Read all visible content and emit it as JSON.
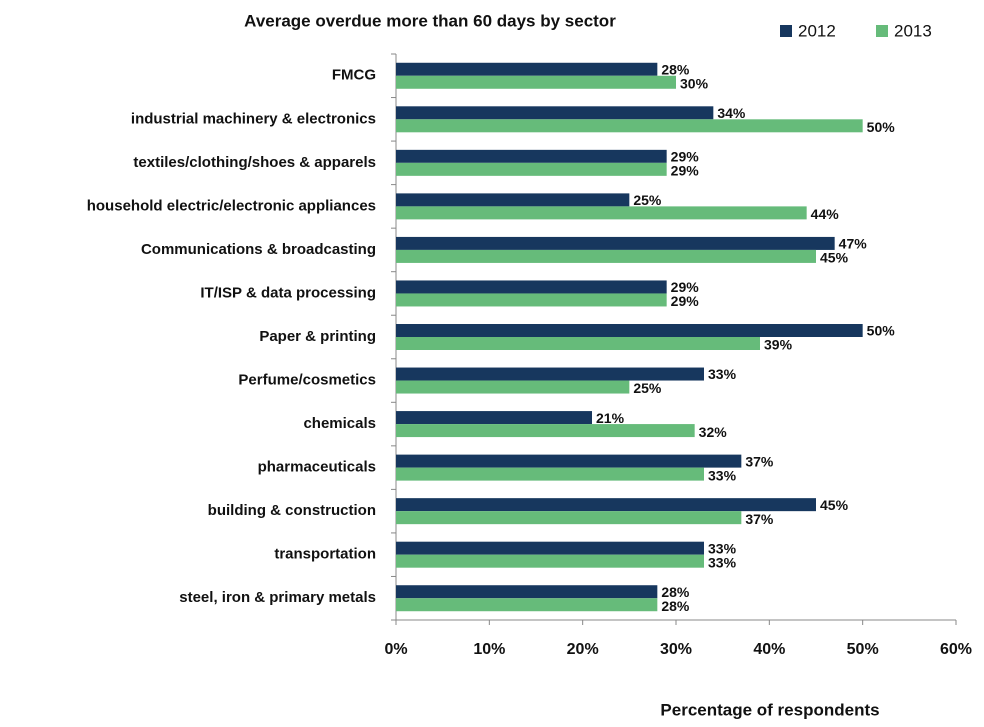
{
  "chart_data": {
    "type": "hbar",
    "title": "Average overdue more than 60 days by sector",
    "x_label": "Percentage of respondents",
    "categories": [
      "FMCG",
      "industrial machinery & electronics",
      "textiles/clothing/shoes & apparels",
      "household electric/electronic appliances",
      "Communications & broadcasting",
      "IT/ISP & data processing",
      "Paper & printing",
      "Perfume/cosmetics",
      "chemicals",
      "pharmaceuticals",
      "building & construction",
      "transportation",
      "steel, iron & primary metals"
    ],
    "series": [
      {
        "name": "2012",
        "color": "#17375e",
        "values": [
          28,
          34,
          29,
          25,
          47,
          29,
          50,
          33,
          21,
          37,
          45,
          33,
          28
        ],
        "value_labels": [
          "28%",
          "34%",
          "29%",
          "25%",
          "47%",
          "29%",
          "50%",
          "33%",
          "21%",
          "37%",
          "45%",
          "33%",
          "28%"
        ]
      },
      {
        "name": "2013",
        "color": "#66bb7a",
        "values": [
          30,
          50,
          29,
          44,
          45,
          29,
          39,
          25,
          32,
          33,
          37,
          33,
          28
        ],
        "value_labels": [
          "30%",
          "50%",
          "29%",
          "44%",
          "45%",
          "29%",
          "39%",
          "25%",
          "32%",
          "33%",
          "37%",
          "33%",
          "28%"
        ]
      }
    ],
    "xlim": [
      0,
      60
    ],
    "xticks": [
      {
        "value": 0,
        "label": "0%"
      },
      {
        "value": 10,
        "label": "10%"
      },
      {
        "value": 20,
        "label": "20%"
      },
      {
        "value": 30,
        "label": "30%"
      },
      {
        "value": 40,
        "label": "40%"
      },
      {
        "value": 50,
        "label": "50%"
      },
      {
        "value": 60,
        "label": "60%"
      }
    ],
    "legend": "top-right",
    "grid": false
  }
}
